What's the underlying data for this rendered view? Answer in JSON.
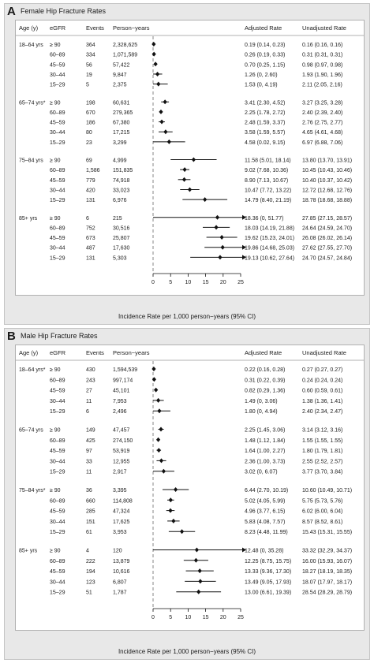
{
  "headers": {
    "age": "Age (y)",
    "egfr": "eGFR",
    "events": "Events",
    "py": "Person−years",
    "adjusted": "Adjusted Rate",
    "unadjusted": "Unadjusted Rate"
  },
  "chart_data": [
    {
      "type": "forest",
      "letter": "A",
      "title": "Female Hip Fracture Rates",
      "xlabel": "Incidence Rate per 1,000 person−years (95% CI)",
      "xlim": [
        0,
        25
      ],
      "xticks": [
        0,
        5,
        10,
        15,
        20,
        25
      ],
      "groups": [
        {
          "age": "18–64 yrs",
          "rows": [
            {
              "egfr": "≥ 90",
              "events": "364",
              "py": "2,328,625",
              "est": 0.19,
              "lo": 0.14,
              "hi": 0.23,
              "adj": "0.19 (0.14, 0.23)",
              "unadj": "0.16 (0.16, 0.16)"
            },
            {
              "egfr": "60–89",
              "events": "334",
              "py": "1,071,589",
              "est": 0.26,
              "lo": 0.19,
              "hi": 0.33,
              "adj": "0.26 (0.19, 0.33)",
              "unadj": "0.31 (0.31, 0.31)"
            },
            {
              "egfr": "45–59",
              "events": "56",
              "py": "57,422",
              "est": 0.7,
              "lo": 0.25,
              "hi": 1.15,
              "adj": "0.70 (0.25, 1.15)",
              "unadj": "0.98 (0.97, 0.98)"
            },
            {
              "egfr": "30–44",
              "events": "19",
              "py": "9,847",
              "est": 1.26,
              "lo": 0,
              "hi": 2.6,
              "adj": "1.26 (0, 2.60)",
              "unadj": "1.93 (1.90, 1.96)"
            },
            {
              "egfr": "15–29",
              "events": "5",
              "py": "2,375",
              "est": 1.53,
              "lo": 0,
              "hi": 4.19,
              "adj": "1.53 (0, 4.19)",
              "unadj": "2.11 (2.05, 2.16)"
            }
          ]
        },
        {
          "age": "65–74 yrs*",
          "rows": [
            {
              "egfr": "≥ 90",
              "events": "198",
              "py": "60,631",
              "est": 3.41,
              "lo": 2.3,
              "hi": 4.52,
              "adj": "3.41 (2.30, 4.52)",
              "unadj": "3.27 (3.25, 3.28)"
            },
            {
              "egfr": "60–89",
              "events": "670",
              "py": "279,365",
              "est": 2.25,
              "lo": 1.78,
              "hi": 2.72,
              "adj": "2.25 (1.78, 2.72)",
              "unadj": "2.40 (2.39, 2.40)"
            },
            {
              "egfr": "45–59",
              "events": "186",
              "py": "67,380",
              "est": 2.48,
              "lo": 1.59,
              "hi": 3.37,
              "adj": "2.48 (1.59, 3.37)",
              "unadj": "2.76 (2.75, 2.77)"
            },
            {
              "egfr": "30–44",
              "events": "80",
              "py": "17,215",
              "est": 3.58,
              "lo": 1.59,
              "hi": 5.57,
              "adj": "3.58 (1.59, 5.57)",
              "unadj": "4.65 (4.61, 4.68)"
            },
            {
              "egfr": "15–29",
              "events": "23",
              "py": "3,299",
              "est": 4.58,
              "lo": 0.02,
              "hi": 9.15,
              "adj": "4.58 (0.02, 9.15)",
              "unadj": "6.97 (6.88, 7.06)"
            }
          ]
        },
        {
          "age": "75–84 yrs",
          "rows": [
            {
              "egfr": "≥ 90",
              "events": "69",
              "py": "4,999",
              "est": 11.58,
              "lo": 5.01,
              "hi": 18.14,
              "adj": "11.58 (5.01, 18.14)",
              "unadj": "13.80 (13.70, 13.91)"
            },
            {
              "egfr": "60–89",
              "events": "1,586",
              "py": "151,835",
              "est": 9.02,
              "lo": 7.68,
              "hi": 10.36,
              "adj": "9.02 (7.68, 10.36)",
              "unadj": "10.45 (10.43, 10.46)"
            },
            {
              "egfr": "45–59",
              "events": "779",
              "py": "74,918",
              "est": 8.9,
              "lo": 7.13,
              "hi": 10.67,
              "adj": "8.90 (7.13, 10.67)",
              "unadj": "10.40 (10.37, 10.42)"
            },
            {
              "egfr": "30–44",
              "events": "420",
              "py": "33,023",
              "est": 10.47,
              "lo": 7.72,
              "hi": 13.22,
              "adj": "10.47 (7.72, 13.22)",
              "unadj": "12.72 (12.68, 12.76)"
            },
            {
              "egfr": "15–29",
              "events": "131",
              "py": "6,976",
              "est": 14.79,
              "lo": 8.4,
              "hi": 21.19,
              "adj": "14.79 (8.40, 21.19)",
              "unadj": "18.78 (18.68, 18.88)"
            }
          ]
        },
        {
          "age": "85+ yrs",
          "rows": [
            {
              "egfr": "≥ 90",
              "events": "6",
              "py": "215",
              "est": 18.36,
              "lo": 0,
              "hi": 51.77,
              "adj": "18.36 (0, 51.77)",
              "unadj": "27.85 (27.15, 28.57)"
            },
            {
              "egfr": "60–89",
              "events": "752",
              "py": "30,516",
              "est": 18.03,
              "lo": 14.19,
              "hi": 21.88,
              "adj": "18.03 (14.19, 21.88)",
              "unadj": "24.64 (24.59, 24.70)"
            },
            {
              "egfr": "45–59",
              "events": "673",
              "py": "25,807",
              "est": 19.62,
              "lo": 15.23,
              "hi": 24.01,
              "adj": "19.62 (15.23, 24.01)",
              "unadj": "26.08 (26.02, 26.14)"
            },
            {
              "egfr": "30–44",
              "events": "487",
              "py": "17,630",
              "est": 19.86,
              "lo": 14.68,
              "hi": 25.03,
              "adj": "19.86 (14.68, 25.03)",
              "unadj": "27.62 (27.55, 27.70)"
            },
            {
              "egfr": "15–29",
              "events": "131",
              "py": "5,303",
              "est": 19.13,
              "lo": 10.62,
              "hi": 27.64,
              "adj": "19.13 (10.62, 27.64)",
              "unadj": "24.70 (24.57, 24.84)"
            }
          ]
        }
      ]
    },
    {
      "type": "forest",
      "letter": "B",
      "title": "Male Hip Fracture Rates",
      "xlabel": "Incidence Rate per 1,000 person−years (95% CI)",
      "xlim": [
        0,
        25
      ],
      "xticks": [
        0,
        5,
        10,
        15,
        20,
        25
      ],
      "groups": [
        {
          "age": "18–64 yrs*",
          "rows": [
            {
              "egfr": "≥ 90",
              "events": "430",
              "py": "1,594,539",
              "est": 0.22,
              "lo": 0.16,
              "hi": 0.28,
              "adj": "0.22 (0.16, 0.28)",
              "unadj": "0.27 (0.27, 0.27)"
            },
            {
              "egfr": "60–89",
              "events": "243",
              "py": "997,174",
              "est": 0.31,
              "lo": 0.22,
              "hi": 0.39,
              "adj": "0.31 (0.22, 0.39)",
              "unadj": "0.24 (0.24, 0.24)"
            },
            {
              "egfr": "45–59",
              "events": "27",
              "py": "45,101",
              "est": 0.82,
              "lo": 0.29,
              "hi": 1.36,
              "adj": "0.82 (0.29, 1.36)",
              "unadj": "0.60 (0.59, 0.61)"
            },
            {
              "egfr": "30–44",
              "events": "11",
              "py": "7,953",
              "est": 1.49,
              "lo": 0,
              "hi": 3.06,
              "adj": "1.49 (0, 3.06)",
              "unadj": "1.38 (1.36, 1.41)"
            },
            {
              "egfr": "15–29",
              "events": "6",
              "py": "2,496",
              "est": 1.8,
              "lo": 0,
              "hi": 4.94,
              "adj": "1.80 (0, 4.94)",
              "unadj": "2.40 (2.34, 2.47)"
            }
          ]
        },
        {
          "age": "65–74 yrs",
          "rows": [
            {
              "egfr": "≥ 90",
              "events": "149",
              "py": "47,457",
              "est": 2.25,
              "lo": 1.45,
              "hi": 3.06,
              "adj": "2.25 (1.45, 3.06)",
              "unadj": "3.14 (3.12, 3.16)"
            },
            {
              "egfr": "60–89",
              "events": "425",
              "py": "274,150",
              "est": 1.48,
              "lo": 1.12,
              "hi": 1.84,
              "adj": "1.48 (1.12, 1.84)",
              "unadj": "1.55 (1.55, 1.55)"
            },
            {
              "egfr": "45–59",
              "events": "97",
              "py": "53,919",
              "est": 1.64,
              "lo": 1.0,
              "hi": 2.27,
              "adj": "1.64 (1.00, 2.27)",
              "unadj": "1.80 (1.79, 1.81)"
            },
            {
              "egfr": "30–44",
              "events": "33",
              "py": "12,955",
              "est": 2.36,
              "lo": 1.0,
              "hi": 3.73,
              "adj": "2.36 (1.00, 3.73)",
              "unadj": "2.55 (2.52, 2.57)"
            },
            {
              "egfr": "15–29",
              "events": "11",
              "py": "2,917",
              "est": 3.02,
              "lo": 0,
              "hi": 6.07,
              "adj": "3.02 (0, 6.07)",
              "unadj": "3.77 (3.70, 3.84)"
            }
          ]
        },
        {
          "age": "75–84 yrs*",
          "rows": [
            {
              "egfr": "≥ 90",
              "events": "36",
              "py": "3,395",
              "est": 6.44,
              "lo": 2.7,
              "hi": 10.19,
              "adj": "6.44 (2.70, 10.19)",
              "unadj": "10.60 (10.49, 10.71)"
            },
            {
              "egfr": "60–89",
              "events": "660",
              "py": "114,808",
              "est": 5.02,
              "lo": 4.05,
              "hi": 5.99,
              "adj": "5.02 (4.05, 5.99)",
              "unadj": "5.75 (5.73, 5.76)"
            },
            {
              "egfr": "45–59",
              "events": "285",
              "py": "47,324",
              "est": 4.96,
              "lo": 3.77,
              "hi": 6.15,
              "adj": "4.96 (3.77, 6.15)",
              "unadj": "6.02 (6.00, 6.04)"
            },
            {
              "egfr": "30–44",
              "events": "151",
              "py": "17,625",
              "est": 5.83,
              "lo": 4.08,
              "hi": 7.57,
              "adj": "5.83 (4.08, 7.57)",
              "unadj": "8.57 (8.52, 8.61)"
            },
            {
              "egfr": "15–29",
              "events": "61",
              "py": "3,953",
              "est": 8.23,
              "lo": 4.48,
              "hi": 11.99,
              "adj": "8.23 (4.48, 11.99)",
              "unadj": "15.43 (15.31, 15.55)"
            }
          ]
        },
        {
          "age": "85+ yrs",
          "rows": [
            {
              "egfr": "≥ 90",
              "events": "4",
              "py": "120",
              "est": 12.48,
              "lo": 0,
              "hi": 35.28,
              "adj": "12.48 (0, 35.28)",
              "unadj": "33.32 (32.29, 34.37)"
            },
            {
              "egfr": "60–89",
              "events": "222",
              "py": "13,879",
              "est": 12.25,
              "lo": 8.75,
              "hi": 15.75,
              "adj": "12.25 (8.75, 15.75)",
              "unadj": "16.00 (15.93, 16.07)"
            },
            {
              "egfr": "45–59",
              "events": "194",
              "py": "10,616",
              "est": 13.33,
              "lo": 9.36,
              "hi": 17.3,
              "adj": "13.33 (9.36, 17.30)",
              "unadj": "18.27 (18.19, 18.35)"
            },
            {
              "egfr": "30–44",
              "events": "123",
              "py": "6,807",
              "est": 13.49,
              "lo": 9.05,
              "hi": 17.93,
              "adj": "13.49 (9.05, 17.93)",
              "unadj": "18.07 (17.97, 18.17)"
            },
            {
              "egfr": "15–29",
              "events": "51",
              "py": "1,787",
              "est": 13.0,
              "lo": 6.61,
              "hi": 19.39,
              "adj": "13.00 (6.61, 19.39)",
              "unadj": "28.54 (28.29, 28.79)"
            }
          ]
        }
      ]
    }
  ]
}
